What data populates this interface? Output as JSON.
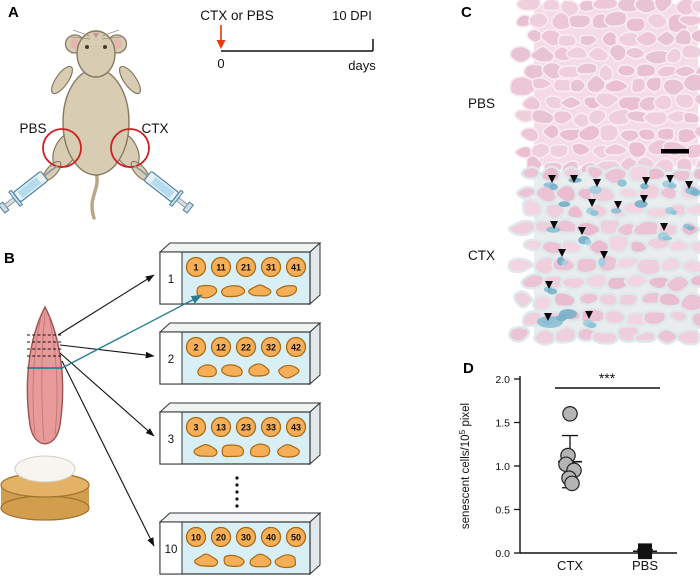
{
  "figure": {
    "panels": {
      "A": {
        "label": "A",
        "left_injection_label": "PBS",
        "right_injection_label": "CTX",
        "timeline": {
          "treatment_label": "CTX or PBS",
          "treatment_color": "#e8380d",
          "start_tick": "0",
          "end_tick": "10 DPI",
          "axis_unit": "days"
        }
      },
      "B": {
        "label": "B",
        "slides": [
          {
            "index": "1",
            "sections": [
              "1",
              "11",
              "21",
              "31",
              "41"
            ]
          },
          {
            "index": "2",
            "sections": [
              "2",
              "12",
              "22",
              "32",
              "42"
            ]
          },
          {
            "index": "3",
            "sections": [
              "3",
              "13",
              "23",
              "33",
              "43"
            ]
          },
          {
            "index": "10",
            "sections": [
              "10",
              "20",
              "30",
              "40",
              "50"
            ]
          }
        ]
      },
      "C": {
        "label": "C",
        "top_image_label": "PBS",
        "bottom_image_label": "CTX"
      },
      "D": {
        "label": "D"
      }
    }
  },
  "chart_data": {
    "type": "scatter",
    "title": "",
    "xlabel": "",
    "ylabel": "senescent cells/10⁵ pixel",
    "ylabel_parts": {
      "base": "senescent cells/10",
      "superscript": "5",
      "suffix": " pixel"
    },
    "ylim": [
      0,
      2.0
    ],
    "ytick_labels": [
      "0.0",
      "0.5",
      "1.0",
      "1.5",
      "2.0"
    ],
    "categories": [
      "CTX",
      "PBS"
    ],
    "grid": false,
    "legend": "none",
    "series": [
      {
        "name": "CTX",
        "marker": "circle",
        "color": "#b4b4b4",
        "values": [
          1.6,
          1.12,
          1.02,
          0.95,
          0.86,
          0.8
        ],
        "mean": 1.05,
        "sd": 0.3
      },
      {
        "name": "PBS",
        "marker": "square",
        "color": "#111111",
        "values": [
          0.03,
          0.02,
          0.01
        ],
        "mean": 0.02,
        "sd": 0.02
      }
    ],
    "significance": {
      "label": "***",
      "between": [
        "CTX",
        "PBS"
      ]
    }
  }
}
